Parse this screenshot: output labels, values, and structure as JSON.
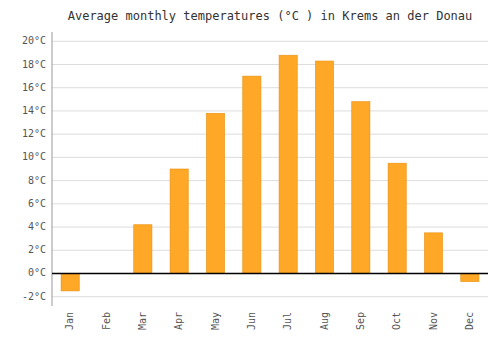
{
  "chart_data": {
    "type": "bar",
    "title": "Average monthly temperatures (°C ) in Krems an der Donau",
    "categories": [
      "Jan",
      "Feb",
      "Mar",
      "Apr",
      "May",
      "Jun",
      "Jul",
      "Aug",
      "Sep",
      "Oct",
      "Nov",
      "Dec"
    ],
    "values": [
      -1.5,
      0.0,
      4.2,
      9.0,
      13.8,
      17.0,
      18.8,
      18.3,
      14.8,
      9.5,
      3.5,
      -0.7
    ],
    "color": "#FFA726",
    "ylim": [
      -2.8,
      20.8
    ],
    "yticks": [
      {
        "value": -2,
        "label": "-2°C"
      },
      {
        "value": 0,
        "label": "0°C"
      },
      {
        "value": 2,
        "label": "2°C"
      },
      {
        "value": 4,
        "label": "4°C"
      },
      {
        "value": 6,
        "label": "6°C"
      },
      {
        "value": 8,
        "label": "8°C"
      },
      {
        "value": 10,
        "label": "10°C"
      },
      {
        "value": 12,
        "label": "12°C"
      },
      {
        "value": 14,
        "label": "14°C"
      },
      {
        "value": 16,
        "label": "16°C"
      },
      {
        "value": 18,
        "label": "18°C"
      },
      {
        "value": 20,
        "label": "20°C"
      }
    ],
    "grid": true
  }
}
